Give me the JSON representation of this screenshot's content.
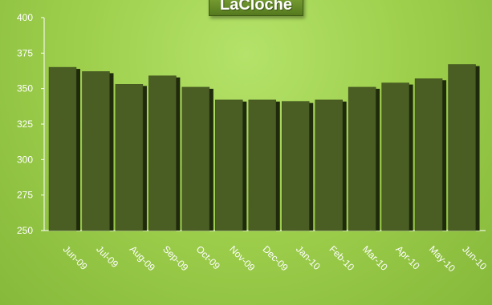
{
  "chart_data": {
    "type": "bar",
    "title": "LaCloche",
    "categories": [
      "Jun-09",
      "Jul-09",
      "Aug-09",
      "Sep-09",
      "Oct-09",
      "Nov-09",
      "Dec-09",
      "Jan-10",
      "Feb-10",
      "Mar-10",
      "Apr-10",
      "May-10",
      "Jun-10"
    ],
    "values": [
      365,
      362,
      353,
      359,
      351,
      342,
      342,
      341,
      342,
      351,
      354,
      357,
      367
    ],
    "xlabel": "",
    "ylabel": "",
    "ylim": [
      250,
      400
    ],
    "yticks": [
      250,
      275,
      300,
      325,
      350,
      375,
      400
    ],
    "grid": false,
    "bar_color": "#4a5e24",
    "bar_shadow_color": "#1f2a0c"
  }
}
